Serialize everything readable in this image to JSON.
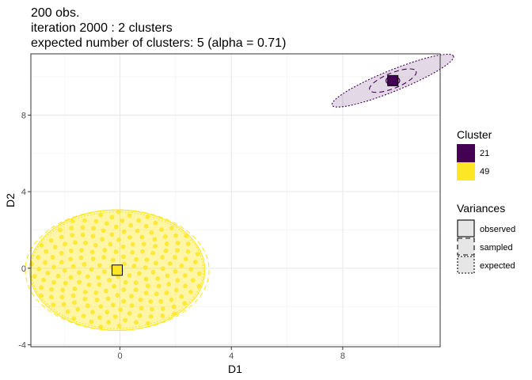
{
  "title": {
    "line1": "200 obs.",
    "line2": "iteration 2000 : 2 clusters",
    "line3": "expected number of clusters: 5 (alpha = 0.71)"
  },
  "chart_data": {
    "type": "scatter",
    "xlabel": "D1",
    "ylabel": "D2",
    "xlim": [
      -3.2,
      11.5
    ],
    "ylim": [
      -4.1,
      11.2
    ],
    "x_ticks": [
      0,
      4,
      8
    ],
    "y_ticks": [
      -4,
      0,
      4,
      8
    ],
    "grid": true,
    "legend_position": "right",
    "clusters": [
      {
        "id": "21",
        "color": "#440154",
        "n_points": 2,
        "center": [
          9.8,
          9.8
        ],
        "points": [
          [
            9.8,
            9.8
          ],
          [
            9.9,
            9.7
          ]
        ],
        "variances": {
          "observed": {
            "rx": 0.25,
            "ry": 0.22
          },
          "sampled": {
            "rx": 0.9,
            "ry": 0.4,
            "angle_deg": 22
          },
          "expected": {
            "rx": 2.35,
            "ry": 0.55,
            "angle_deg": 22
          }
        }
      },
      {
        "id": "49",
        "color": "#FDE725",
        "n_points": 198,
        "center": [
          -0.1,
          -0.1
        ],
        "variances": {
          "observed": {
            "rx": 3.15,
            "ry": 3.15
          },
          "sampled": {
            "rx": 3.3,
            "ry": 3.15
          },
          "expected": {
            "rx": 3.1,
            "ry": 3.05
          }
        }
      }
    ]
  },
  "legend": {
    "cluster_title": "Cluster",
    "cluster_items": [
      {
        "label": "21",
        "color": "#440154"
      },
      {
        "label": "49",
        "color": "#FDE725"
      }
    ],
    "variance_title": "Variances",
    "variance_items": [
      {
        "label": "observed",
        "linetype": "solid"
      },
      {
        "label": "sampled",
        "linetype": "dashed"
      },
      {
        "label": "expected",
        "linetype": "dotted"
      }
    ]
  }
}
